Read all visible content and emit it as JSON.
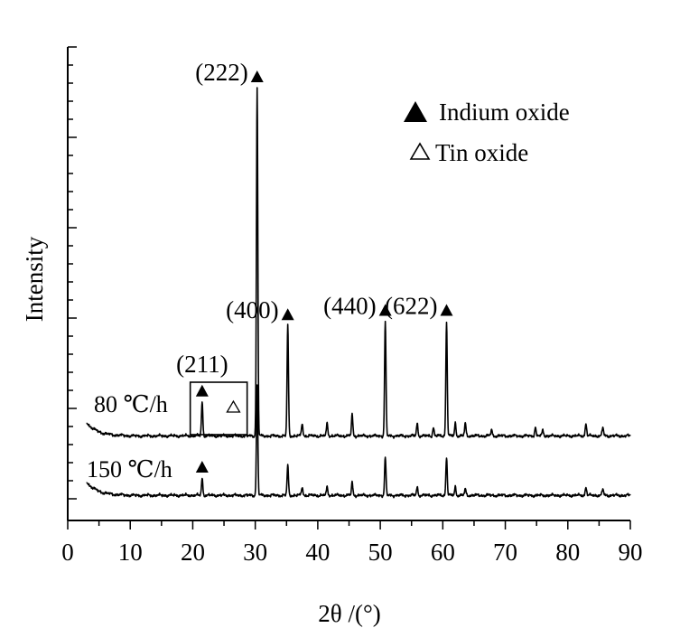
{
  "chart_data": {
    "type": "line",
    "title": "",
    "xlabel": "2θ /(°)",
    "ylabel": "Intensity",
    "xlim": [
      0,
      90
    ],
    "x_ticks": [
      "0",
      "10",
      "20",
      "30",
      "40",
      "50",
      "60",
      "70",
      "80",
      "90"
    ],
    "y_ticks_shown": false,
    "grid": false,
    "legend": {
      "placement": "top-right",
      "entries": [
        {
          "marker": "filled-triangle",
          "label": "Indium oxide"
        },
        {
          "marker": "open-triangle",
          "label": "Tin oxide"
        }
      ]
    },
    "series": [
      {
        "name": "80 ℃/h",
        "baseline": 18,
        "peaks": [
          {
            "x": 21.5,
            "y": 26
          },
          {
            "x": 30.3,
            "y": 100
          },
          {
            "x": 35.2,
            "y": 44
          },
          {
            "x": 37.5,
            "y": 21
          },
          {
            "x": 41.5,
            "y": 21
          },
          {
            "x": 45.5,
            "y": 23
          },
          {
            "x": 50.8,
            "y": 45
          },
          {
            "x": 55.9,
            "y": 21
          },
          {
            "x": 58.5,
            "y": 20
          },
          {
            "x": 60.6,
            "y": 45
          },
          {
            "x": 62.0,
            "y": 21
          },
          {
            "x": 63.6,
            "y": 21
          },
          {
            "x": 67.8,
            "y": 19.5
          },
          {
            "x": 74.8,
            "y": 20
          },
          {
            "x": 76.0,
            "y": 19.5
          },
          {
            "x": 82.9,
            "y": 21
          },
          {
            "x": 85.6,
            "y": 20
          }
        ]
      },
      {
        "name": "150 ℃/h",
        "baseline": 4,
        "peaks": [
          {
            "x": 21.5,
            "y": 8
          },
          {
            "x": 30.3,
            "y": 30
          },
          {
            "x": 35.2,
            "y": 11
          },
          {
            "x": 37.5,
            "y": 6
          },
          {
            "x": 41.5,
            "y": 6
          },
          {
            "x": 45.5,
            "y": 7
          },
          {
            "x": 50.8,
            "y": 13
          },
          {
            "x": 55.9,
            "y": 6
          },
          {
            "x": 60.6,
            "y": 13
          },
          {
            "x": 62.0,
            "y": 6
          },
          {
            "x": 63.6,
            "y": 5.5
          },
          {
            "x": 82.9,
            "y": 6
          },
          {
            "x": 85.6,
            "y": 5.5
          }
        ]
      }
    ],
    "annotations": [
      {
        "text": "(211)",
        "x": 21.5,
        "marker": "filled-triangle"
      },
      {
        "text": "(222)",
        "x": 30.3,
        "marker": "filled-triangle"
      },
      {
        "text": "(400)",
        "x": 35.2,
        "marker": "filled-triangle"
      },
      {
        "text": "(440)",
        "x": 50.8,
        "marker": "filled-triangle"
      },
      {
        "text": "(622)",
        "x": 60.6,
        "marker": "filled-triangle"
      },
      {
        "text": "",
        "x": 26.5,
        "marker": "open-triangle",
        "note_box": true
      }
    ]
  }
}
